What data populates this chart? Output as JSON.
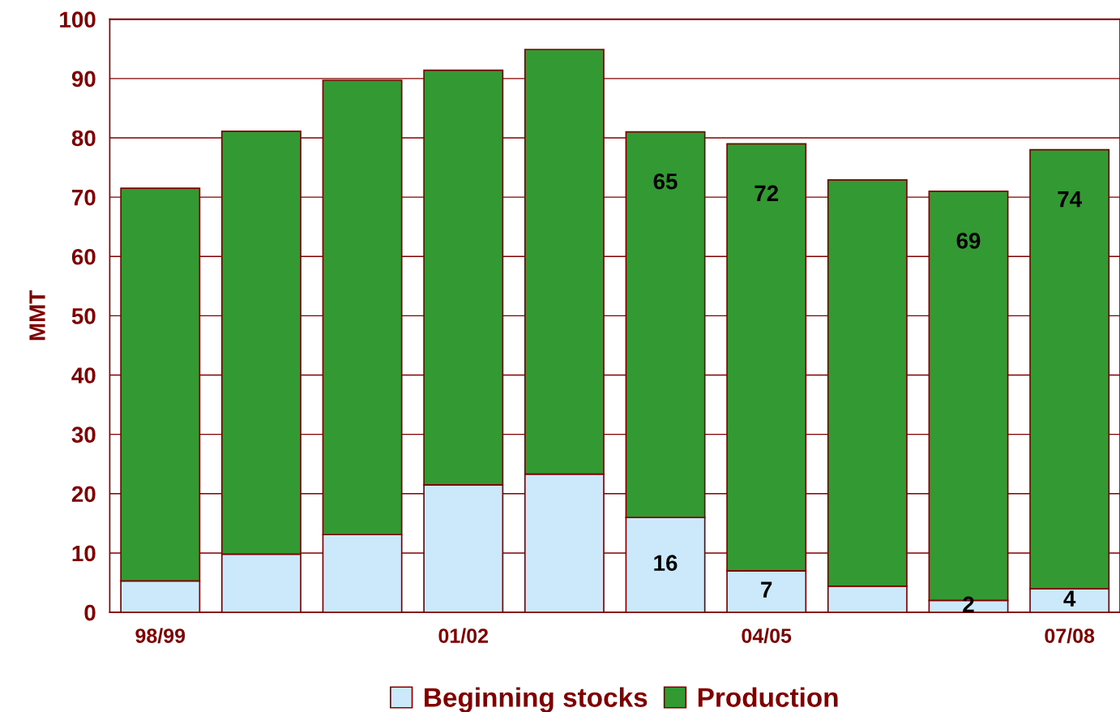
{
  "chart_data": {
    "type": "bar",
    "stacked": true,
    "ylabel": "MMT",
    "categories": [
      "98/99",
      null,
      null,
      "01/02",
      null,
      null,
      "04/05",
      null,
      null,
      "07/08"
    ],
    "series": [
      {
        "name": "Beginning stocks",
        "color": "#cce9fb",
        "values": [
          5.3,
          9.8,
          13.1,
          21.5,
          23.3,
          16,
          7,
          4.4,
          2,
          4
        ],
        "value_labels": [
          null,
          null,
          null,
          null,
          null,
          "16",
          "7",
          null,
          "2",
          "4"
        ]
      },
      {
        "name": "Production",
        "color": "#339933",
        "values": [
          66.2,
          71.3,
          76.6,
          69.9,
          71.6,
          65,
          72,
          68.5,
          69,
          74
        ],
        "value_labels": [
          null,
          null,
          null,
          null,
          null,
          "65",
          "72",
          null,
          "69",
          "74"
        ]
      }
    ],
    "ylim": [
      0,
      100
    ],
    "yticks": [
      0,
      10,
      20,
      30,
      40,
      50,
      60,
      70,
      80,
      90,
      100
    ],
    "grid": "y",
    "legend": "bottom"
  }
}
